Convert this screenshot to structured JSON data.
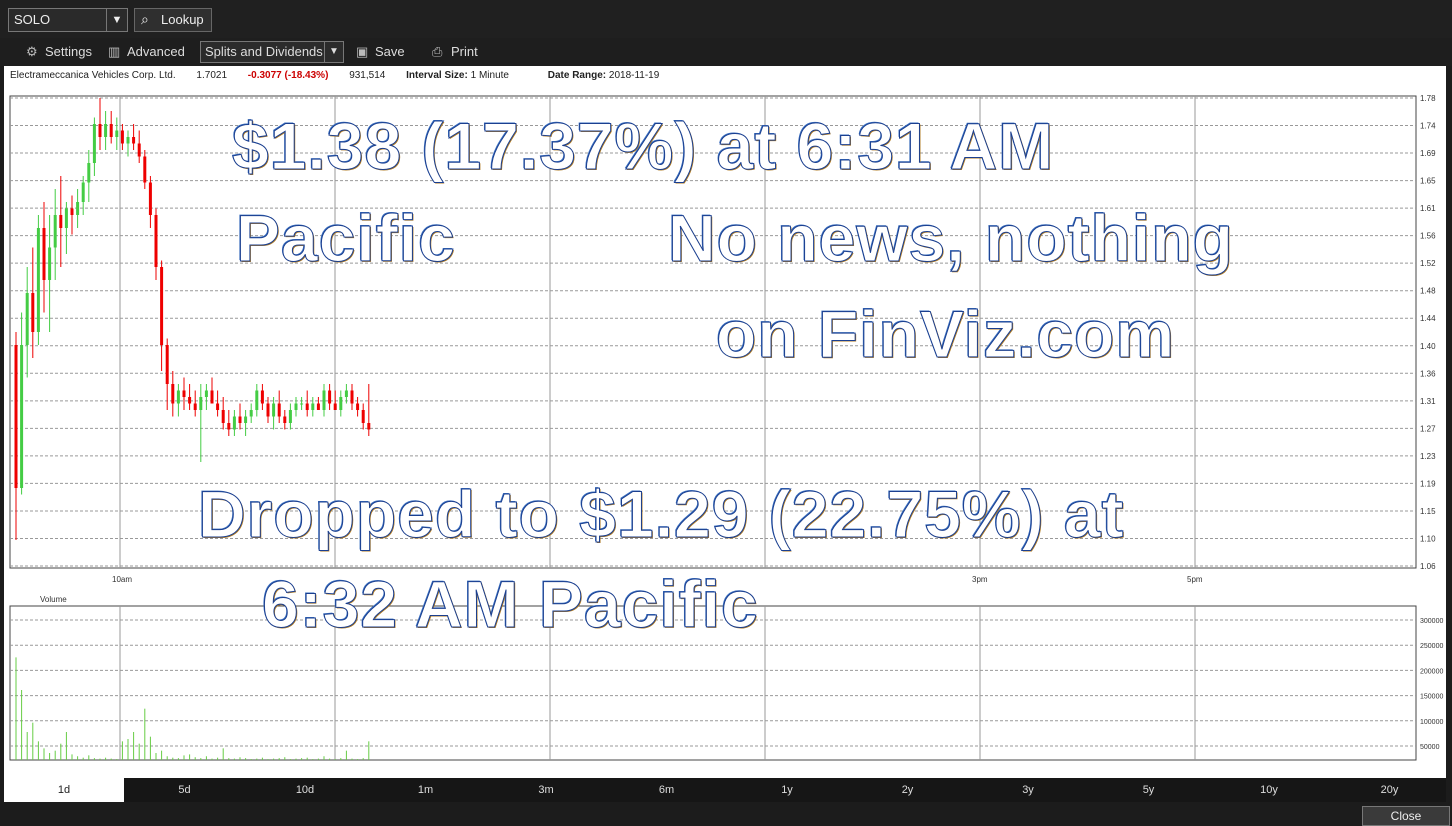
{
  "header": {
    "symbol": "SOLO",
    "lookup_label": "Lookup"
  },
  "toolbar": {
    "settings_label": "Settings",
    "advanced_label": "Advanced",
    "splits_label": "Splits and Dividends",
    "save_label": "Save",
    "print_label": "Print"
  },
  "info": {
    "company": "Electrameccanica Vehicles Corp. Ltd.",
    "price": "1.7021",
    "change": "-0.3077 (-18.43%)",
    "volume": "931,514",
    "interval_label": "Interval Size:",
    "interval_value": "1 Minute",
    "date_label": "Date Range:",
    "date_value": "2018-11-19"
  },
  "overlays": {
    "line1": "$1.38 (17.37%) at 6:31 AM",
    "line2": "Pacific",
    "line3": "No news, nothing",
    "line4": "on FinViz.com",
    "line5": "Dropped to $1.29 (22.75%) at",
    "line6": "6:32 AM Pacific"
  },
  "periods": [
    "1d",
    "5d",
    "10d",
    "1m",
    "3m",
    "6m",
    "1y",
    "2y",
    "3y",
    "5y",
    "10y",
    "20y"
  ],
  "active_period": "1d",
  "close_label": "Close",
  "colors": {
    "up": "#44cc44",
    "down": "#ee0000",
    "volume": "#66cc44",
    "grid": "#999999"
  },
  "chart_data": {
    "type": "candlestick",
    "title": "",
    "price_axis_labels": [
      "1.78",
      "1.74",
      "1.69",
      "1.65",
      "1.61",
      "1.56",
      "1.52",
      "1.48",
      "1.44",
      "1.40",
      "1.36",
      "1.31",
      "1.27",
      "1.23",
      "1.19",
      "1.15",
      "1.10",
      "1.06"
    ],
    "time_axis_labels": [
      "10am",
      "3pm",
      "5pm"
    ],
    "volume_label": "Volume",
    "volume_axis_labels": [
      "300000",
      "250000",
      "200000",
      "150000",
      "100000",
      "50000"
    ],
    "candles": [
      {
        "o": 1.4,
        "h": 1.42,
        "l": 1.1,
        "c": 1.18
      },
      {
        "o": 1.18,
        "h": 1.45,
        "l": 1.17,
        "c": 1.4
      },
      {
        "o": 1.4,
        "h": 1.52,
        "l": 1.35,
        "c": 1.48
      },
      {
        "o": 1.48,
        "h": 1.55,
        "l": 1.38,
        "c": 1.42
      },
      {
        "o": 1.42,
        "h": 1.6,
        "l": 1.4,
        "c": 1.58
      },
      {
        "o": 1.58,
        "h": 1.62,
        "l": 1.45,
        "c": 1.5
      },
      {
        "o": 1.5,
        "h": 1.6,
        "l": 1.42,
        "c": 1.55
      },
      {
        "o": 1.55,
        "h": 1.64,
        "l": 1.5,
        "c": 1.6
      },
      {
        "o": 1.6,
        "h": 1.66,
        "l": 1.52,
        "c": 1.58
      },
      {
        "o": 1.58,
        "h": 1.62,
        "l": 1.54,
        "c": 1.61
      },
      {
        "o": 1.61,
        "h": 1.63,
        "l": 1.57,
        "c": 1.6
      },
      {
        "o": 1.6,
        "h": 1.64,
        "l": 1.58,
        "c": 1.62
      },
      {
        "o": 1.62,
        "h": 1.66,
        "l": 1.6,
        "c": 1.65
      },
      {
        "o": 1.65,
        "h": 1.7,
        "l": 1.62,
        "c": 1.68
      },
      {
        "o": 1.68,
        "h": 1.75,
        "l": 1.66,
        "c": 1.74
      },
      {
        "o": 1.74,
        "h": 1.78,
        "l": 1.7,
        "c": 1.72
      },
      {
        "o": 1.72,
        "h": 1.76,
        "l": 1.7,
        "c": 1.74
      },
      {
        "o": 1.74,
        "h": 1.76,
        "l": 1.71,
        "c": 1.72
      },
      {
        "o": 1.72,
        "h": 1.75,
        "l": 1.7,
        "c": 1.73
      },
      {
        "o": 1.73,
        "h": 1.74,
        "l": 1.7,
        "c": 1.71
      },
      {
        "o": 1.71,
        "h": 1.73,
        "l": 1.69,
        "c": 1.72
      },
      {
        "o": 1.72,
        "h": 1.74,
        "l": 1.7,
        "c": 1.71
      },
      {
        "o": 1.71,
        "h": 1.73,
        "l": 1.68,
        "c": 1.69
      },
      {
        "o": 1.69,
        "h": 1.7,
        "l": 1.64,
        "c": 1.65
      },
      {
        "o": 1.65,
        "h": 1.66,
        "l": 1.58,
        "c": 1.6
      },
      {
        "o": 1.6,
        "h": 1.61,
        "l": 1.5,
        "c": 1.52
      },
      {
        "o": 1.52,
        "h": 1.53,
        "l": 1.36,
        "c": 1.4
      },
      {
        "o": 1.4,
        "h": 1.41,
        "l": 1.3,
        "c": 1.34
      },
      {
        "o": 1.34,
        "h": 1.36,
        "l": 1.29,
        "c": 1.31
      },
      {
        "o": 1.31,
        "h": 1.34,
        "l": 1.29,
        "c": 1.33
      },
      {
        "o": 1.33,
        "h": 1.35,
        "l": 1.3,
        "c": 1.32
      },
      {
        "o": 1.32,
        "h": 1.34,
        "l": 1.3,
        "c": 1.31
      },
      {
        "o": 1.31,
        "h": 1.33,
        "l": 1.29,
        "c": 1.3
      },
      {
        "o": 1.3,
        "h": 1.34,
        "l": 1.22,
        "c": 1.32
      },
      {
        "o": 1.32,
        "h": 1.34,
        "l": 1.3,
        "c": 1.33
      },
      {
        "o": 1.33,
        "h": 1.35,
        "l": 1.31,
        "c": 1.31
      },
      {
        "o": 1.31,
        "h": 1.33,
        "l": 1.29,
        "c": 1.3
      },
      {
        "o": 1.3,
        "h": 1.32,
        "l": 1.27,
        "c": 1.28
      },
      {
        "o": 1.28,
        "h": 1.3,
        "l": 1.26,
        "c": 1.27
      },
      {
        "o": 1.27,
        "h": 1.3,
        "l": 1.26,
        "c": 1.29
      },
      {
        "o": 1.29,
        "h": 1.31,
        "l": 1.27,
        "c": 1.28
      },
      {
        "o": 1.28,
        "h": 1.3,
        "l": 1.26,
        "c": 1.29
      },
      {
        "o": 1.29,
        "h": 1.31,
        "l": 1.28,
        "c": 1.3
      },
      {
        "o": 1.3,
        "h": 1.34,
        "l": 1.29,
        "c": 1.33
      },
      {
        "o": 1.33,
        "h": 1.34,
        "l": 1.3,
        "c": 1.31
      },
      {
        "o": 1.31,
        "h": 1.32,
        "l": 1.28,
        "c": 1.29
      },
      {
        "o": 1.29,
        "h": 1.32,
        "l": 1.27,
        "c": 1.31
      },
      {
        "o": 1.31,
        "h": 1.33,
        "l": 1.28,
        "c": 1.29
      },
      {
        "o": 1.29,
        "h": 1.3,
        "l": 1.27,
        "c": 1.28
      },
      {
        "o": 1.28,
        "h": 1.31,
        "l": 1.27,
        "c": 1.3
      },
      {
        "o": 1.3,
        "h": 1.32,
        "l": 1.29,
        "c": 1.31
      },
      {
        "o": 1.31,
        "h": 1.32,
        "l": 1.3,
        "c": 1.31
      },
      {
        "o": 1.31,
        "h": 1.33,
        "l": 1.29,
        "c": 1.3
      },
      {
        "o": 1.3,
        "h": 1.32,
        "l": 1.29,
        "c": 1.31
      },
      {
        "o": 1.31,
        "h": 1.32,
        "l": 1.3,
        "c": 1.3
      },
      {
        "o": 1.3,
        "h": 1.34,
        "l": 1.29,
        "c": 1.33
      },
      {
        "o": 1.33,
        "h": 1.34,
        "l": 1.3,
        "c": 1.31
      },
      {
        "o": 1.31,
        "h": 1.33,
        "l": 1.3,
        "c": 1.3
      },
      {
        "o": 1.3,
        "h": 1.33,
        "l": 1.29,
        "c": 1.32
      },
      {
        "o": 1.32,
        "h": 1.34,
        "l": 1.31,
        "c": 1.33
      },
      {
        "o": 1.33,
        "h": 1.34,
        "l": 1.3,
        "c": 1.31
      },
      {
        "o": 1.31,
        "h": 1.32,
        "l": 1.29,
        "c": 1.3
      },
      {
        "o": 1.3,
        "h": 1.31,
        "l": 1.27,
        "c": 1.28
      },
      {
        "o": 1.28,
        "h": 1.34,
        "l": 1.26,
        "c": 1.27
      }
    ],
    "volumes": [
      220000,
      150000,
      60000,
      80000,
      40000,
      25000,
      15000,
      20000,
      35000,
      60000,
      12000,
      8000,
      5000,
      10000,
      4000,
      3000,
      5000,
      3000,
      2000,
      40000,
      45000,
      60000,
      35000,
      110000,
      50000,
      15000,
      20000,
      8000,
      5000,
      4000,
      10000,
      12000,
      6000,
      4000,
      8000,
      3000,
      5000,
      25000,
      4000,
      3000,
      6000,
      4000,
      2000,
      3000,
      5000,
      2000,
      3000,
      4000,
      6000,
      2000,
      3000,
      4000,
      5000,
      2000,
      3000,
      8000,
      3000,
      2000,
      4000,
      20000,
      3000,
      2000,
      4000,
      40000
    ]
  }
}
